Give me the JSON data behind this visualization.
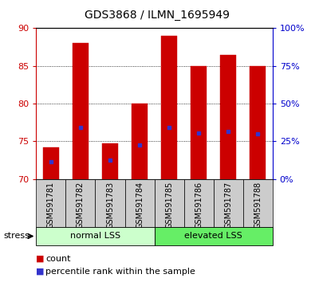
{
  "title": "GDS3868 / ILMN_1695949",
  "samples": [
    "GSM591781",
    "GSM591782",
    "GSM591783",
    "GSM591784",
    "GSM591785",
    "GSM591786",
    "GSM591787",
    "GSM591788"
  ],
  "bar_tops": [
    74.2,
    88.0,
    74.7,
    80.0,
    89.0,
    85.0,
    86.5,
    85.0
  ],
  "bar_bottom": 70.0,
  "percentile_vals": [
    72.3,
    76.8,
    72.5,
    74.5,
    76.8,
    76.1,
    76.3,
    76.0
  ],
  "ylim": [
    70,
    90
  ],
  "yticks_left": [
    70,
    75,
    80,
    85,
    90
  ],
  "right_tick_positions": [
    70,
    75,
    80,
    85,
    90
  ],
  "ytick_labels_right": [
    "0%",
    "25%",
    "50%",
    "75%",
    "100%"
  ],
  "bar_color": "#cc0000",
  "percentile_color": "#3333cc",
  "group1_label": "normal LSS",
  "group2_label": "elevated LSS",
  "group1_color": "#ccffcc",
  "group2_color": "#66ee66",
  "stress_label": "stress",
  "legend_count": "count",
  "legend_pct": "percentile rank within the sample",
  "bar_width": 0.55,
  "tick_color_left": "#cc0000",
  "tick_color_right": "#0000cc",
  "xticklabel_bg": "#cccccc",
  "title_fontsize": 10,
  "axis_label_fontsize": 8,
  "legend_fontsize": 8,
  "sample_fontsize": 7
}
